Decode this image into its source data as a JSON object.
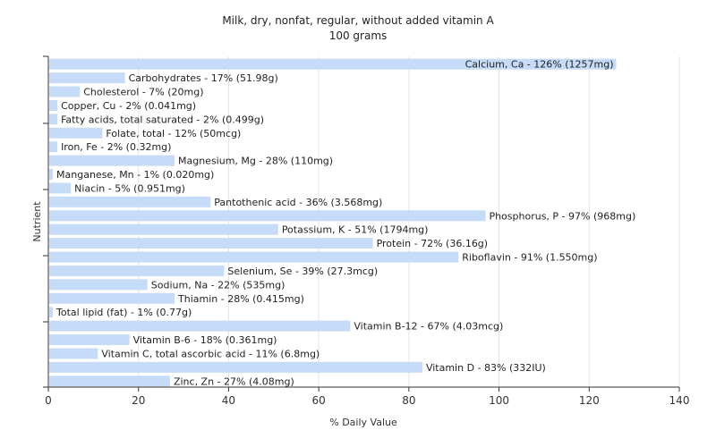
{
  "chart_data": {
    "type": "bar",
    "orientation": "horizontal",
    "title": "Milk, dry, nonfat, regular, without added vitamin A",
    "subtitle": "100 grams",
    "xlabel": "% Daily Value",
    "ylabel": "Nutrient",
    "xlim": [
      0,
      140
    ],
    "xticks": [
      "0",
      "20",
      "40",
      "60",
      "80",
      "100",
      "120",
      "140"
    ],
    "grid": true,
    "bar_color": "#c6dbf7",
    "categories": [
      "Calcium, Ca",
      "Carbohydrates",
      "Cholesterol",
      "Copper, Cu",
      "Fatty acids, total saturated",
      "Folate, total",
      "Iron, Fe",
      "Magnesium, Mg",
      "Manganese, Mn",
      "Niacin",
      "Pantothenic acid",
      "Phosphorus, P",
      "Potassium, K",
      "Protein",
      "Riboflavin",
      "Selenium, Se",
      "Sodium, Na",
      "Thiamin",
      "Total lipid (fat)",
      "Vitamin B-12",
      "Vitamin B-6",
      "Vitamin C, total ascorbic acid",
      "Vitamin D",
      "Zinc, Zn"
    ],
    "values": [
      126,
      17,
      7,
      2,
      2,
      12,
      2,
      28,
      1,
      5,
      36,
      97,
      51,
      72,
      91,
      39,
      22,
      28,
      1,
      67,
      18,
      11,
      83,
      27
    ],
    "bar_labels": [
      "Calcium, Ca - 126% (1257mg)",
      "Carbohydrates - 17% (51.98g)",
      "Cholesterol - 7% (20mg)",
      "Copper, Cu - 2% (0.041mg)",
      "Fatty acids, total saturated - 2% (0.499g)",
      "Folate, total - 12% (50mcg)",
      "Iron, Fe - 2% (0.32mg)",
      "Magnesium, Mg - 28% (110mg)",
      "Manganese, Mn - 1% (0.020mg)",
      "Niacin - 5% (0.951mg)",
      "Pantothenic acid - 36% (3.568mg)",
      "Phosphorus, P - 97% (968mg)",
      "Potassium, K - 51% (1794mg)",
      "Protein - 72% (36.16g)",
      "Riboflavin - 91% (1.550mg)",
      "Selenium, Se - 39% (27.3mcg)",
      "Sodium, Na - 22% (535mg)",
      "Thiamin - 28% (0.415mg)",
      "Total lipid (fat) - 1% (0.77g)",
      "Vitamin B-12 - 67% (4.03mcg)",
      "Vitamin B-6 - 18% (0.361mg)",
      "Vitamin C, total ascorbic acid - 11% (6.8mg)",
      "Vitamin D - 83% (332IU)",
      "Zinc, Zn - 27% (4.08mg)"
    ]
  }
}
